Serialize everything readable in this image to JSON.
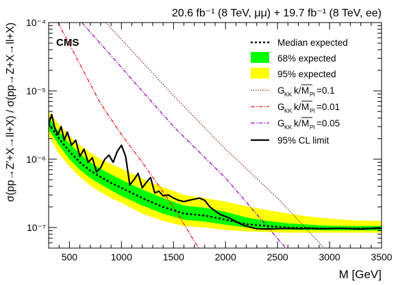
{
  "chart_data": {
    "type": "line",
    "title": "20.6 fb⁻¹ (8 TeV, μμ) + 19.7 fb⁻¹ (8 TeV, ee)",
    "watermark": "CMS",
    "xlabel": "M [GeV]",
    "ylabel": "σ(pp→Z′+X→ll+X) / σ(pp→Z+X→ll+X)",
    "xlim": [
      300,
      3500
    ],
    "ylim": [
      5e-08,
      0.0001
    ],
    "yscale": "log",
    "x_ticks": [
      500,
      1000,
      1500,
      2000,
      2500,
      3000,
      3500
    ],
    "y_ticks": [
      {
        "value": 1e-07,
        "label": "10⁻⁷"
      },
      {
        "value": 1e-06,
        "label": "10⁻⁶"
      },
      {
        "value": 1e-05,
        "label": "10⁻⁵"
      },
      {
        "value": 0.0001,
        "label": "10⁻⁴"
      }
    ],
    "legend_position": "top-right",
    "legend": [
      {
        "label": "Median expected",
        "style": "dashed-black"
      },
      {
        "label": "68% expected",
        "style": "band-green"
      },
      {
        "label": "95% expected",
        "style": "band-yellow"
      },
      {
        "label": "G_KK k/M̅_Pl=0.1",
        "style": "dotted-brown"
      },
      {
        "label": "G_KK k/M̅_Pl=0.01",
        "style": "dashdot-red"
      },
      {
        "label": "G_KK k/M̅_Pl=0.05",
        "style": "dashdot-purple"
      },
      {
        "label": "95% CL limit",
        "style": "solid-black"
      }
    ],
    "legend_text": {
      "median": "Median expected",
      "band68": "68% expected",
      "band95": "95% expected",
      "g01_val": "=0.1",
      "g001_val": "=0.01",
      "g005_val": "=0.05",
      "observed": "95% CL limit"
    },
    "colors": {
      "band95": "#ffff00",
      "band68": "#00ff00",
      "median": "#000000",
      "observed": "#000000",
      "g01": "#8b2b14",
      "g001": "#e8191b",
      "g005": "#a000c8"
    },
    "series": [
      {
        "name": "Median expected",
        "x": [
          300,
          400,
          500,
          600,
          700,
          800,
          900,
          1000,
          1200,
          1400,
          1600,
          1800,
          2000,
          2200,
          2400,
          2600,
          2800,
          3000,
          3200,
          3500
        ],
        "y": [
          3.3e-06,
          2e-06,
          1.3e-06,
          9e-07,
          6.8e-07,
          5.5e-07,
          4.5e-07,
          3.8e-07,
          2.7e-07,
          2e-07,
          1.6e-07,
          1.5e-07,
          1.3e-07,
          1.12e-07,
          1.05e-07,
          1e-07,
          9.8e-08,
          9.7e-08,
          9.7e-08,
          9.7e-08
        ]
      },
      {
        "name": "68% expected",
        "x": [
          300,
          400,
          500,
          600,
          700,
          800,
          900,
          1000,
          1200,
          1400,
          1600,
          1800,
          2000,
          2200,
          2400,
          2600,
          2800,
          3000,
          3200,
          3500
        ],
        "low": [
          2.7e-06,
          1.6e-06,
          1e-06,
          7e-07,
          5.3e-07,
          4.3e-07,
          3.5e-07,
          2.9e-07,
          2.1e-07,
          1.6e-07,
          1.3e-07,
          1.22e-07,
          1.1e-07,
          1e-07,
          9.6e-08,
          9.3e-08,
          9.2e-08,
          9.1e-08,
          9.1e-08,
          9.1e-08
        ],
        "high": [
          4.1e-06,
          2.5e-06,
          1.7e-06,
          1.2e-06,
          9e-07,
          7.2e-07,
          6e-07,
          5e-07,
          3.6e-07,
          2.7e-07,
          2.1e-07,
          1.95e-07,
          1.7e-07,
          1.4e-07,
          1.25e-07,
          1.15e-07,
          1.1e-07,
          1.06e-07,
          1.05e-07,
          1.05e-07
        ]
      },
      {
        "name": "95% expected",
        "x": [
          300,
          400,
          500,
          600,
          700,
          800,
          900,
          1000,
          1200,
          1400,
          1600,
          1800,
          2000,
          2200,
          2400,
          2600,
          2800,
          3000,
          3200,
          3500
        ],
        "low": [
          2.2e-06,
          1.2e-06,
          7.8e-07,
          5.5e-07,
          4.1e-07,
          3.3e-07,
          2.7e-07,
          2.3e-07,
          1.6e-07,
          1.25e-07,
          1.05e-07,
          1e-07,
          9.2e-08,
          8.8e-08,
          8.6e-08,
          8.4e-08,
          8.4e-08,
          8.4e-08,
          8.4e-08,
          8.4e-08
        ],
        "high": [
          5e-06,
          3.2e-06,
          2.2e-06,
          1.6e-06,
          1.25e-06,
          1e-06,
          8.5e-07,
          7.3e-07,
          5.2e-07,
          3.9e-07,
          3e-07,
          2.7e-07,
          2.4e-07,
          2.05e-07,
          1.8e-07,
          1.6e-07,
          1.45e-07,
          1.35e-07,
          1.28e-07,
          1.25e-07
        ]
      },
      {
        "name": "95% CL limit",
        "x": [
          300,
          330,
          360,
          390,
          420,
          450,
          480,
          520,
          560,
          600,
          640,
          680,
          720,
          760,
          800,
          840,
          880,
          920,
          960,
          1000,
          1040,
          1080,
          1120,
          1160,
          1200,
          1240,
          1280,
          1320,
          1360,
          1400,
          1450,
          1500,
          1550,
          1600,
          1650,
          1700,
          1750,
          1800,
          1850,
          1900,
          1950,
          2000,
          2050,
          2100,
          2150,
          2200,
          2250,
          2300,
          2400,
          2500,
          2600,
          2700,
          2800,
          2900,
          3000,
          3100,
          3200,
          3300,
          3400,
          3500
        ],
        "y": [
          3.3e-06,
          4.5e-06,
          2.8e-06,
          2.3e-06,
          3e-06,
          1.9e-06,
          2.5e-06,
          1.6e-06,
          1.9e-06,
          1.1e-06,
          1.4e-06,
          9e-07,
          1.05e-06,
          6.5e-07,
          7.5e-07,
          1e-06,
          1.15e-06,
          9e-07,
          1.3e-06,
          1.6e-06,
          1.1e-06,
          4.2e-07,
          5e-07,
          6.2e-07,
          3.8e-07,
          4.6e-07,
          5.4e-07,
          3.2e-07,
          3.4e-07,
          2.9e-07,
          3e-07,
          2.7e-07,
          2.5e-07,
          2.4e-07,
          2.5e-07,
          2.6e-07,
          2.7e-07,
          2.5e-07,
          2e-07,
          1.75e-07,
          1.55e-07,
          1.45e-07,
          1.35e-07,
          1.22e-07,
          1.12e-07,
          1.05e-07,
          1e-07,
          9.6e-08,
          9.5e-08,
          9.6e-08,
          9.7e-08,
          9.6e-08,
          9.7e-08,
          9.6e-08,
          9.6e-08,
          9.8e-08,
          9.6e-08,
          9.5e-08,
          9.7e-08,
          9.8e-08
        ]
      },
      {
        "name": "G_KK k/M̅_Pl=0.1",
        "x": [
          850,
          1500,
          2000,
          2500,
          2950
        ],
        "y": [
          0.0001,
          8.5e-06,
          1.4e-06,
          2.7e-07,
          5e-08
        ]
      },
      {
        "name": "G_KK k/M̅_Pl=0.01",
        "x": [
          390,
          800,
          1000,
          1200,
          1500,
          1740
        ],
        "y": [
          0.0001,
          6.5e-06,
          2.3e-06,
          9e-07,
          2e-07,
          5e-08
        ]
      },
      {
        "name": "G_KK k/M̅_Pl=0.05",
        "x": [
          620,
          1000,
          1500,
          2000,
          2580
        ],
        "y": [
          0.0001,
          2.2e-05,
          3e-06,
          5.3e-07,
          5e-08
        ]
      }
    ]
  }
}
